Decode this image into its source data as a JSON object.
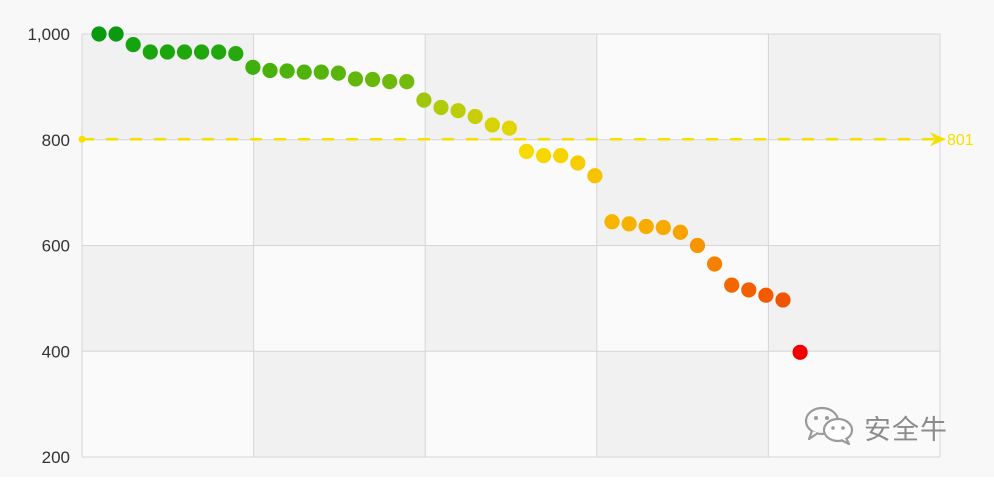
{
  "chart_data": {
    "type": "scatter",
    "title": "",
    "xlabel": "",
    "ylabel": "",
    "ylim": [
      200,
      1000
    ],
    "y_ticks": [
      {
        "value": 1000,
        "label": "1,000"
      },
      {
        "value": 800,
        "label": "800"
      },
      {
        "value": 600,
        "label": "600"
      },
      {
        "value": 400,
        "label": "400"
      },
      {
        "value": 200,
        "label": "200"
      }
    ],
    "x_gridlines": 4,
    "grid": true,
    "legend": "none",
    "reference_line": {
      "value": 801,
      "label": "801",
      "color": "#f5e000",
      "style": "dashed"
    },
    "series": [
      {
        "values": [
          1000,
          1000,
          980,
          966,
          966,
          966,
          966,
          966,
          963,
          937,
          931,
          930,
          928,
          928,
          926,
          915,
          914,
          910,
          910,
          875,
          861,
          855,
          844,
          828,
          822,
          778,
          770,
          770,
          756,
          732,
          645,
          641,
          636,
          634,
          625,
          600,
          565,
          525,
          516,
          506,
          497,
          398
        ],
        "colors": [
          "#0a9a10",
          "#0a9a10",
          "#14a40f",
          "#1ca60e",
          "#1ca60e",
          "#20a70e",
          "#20a70e",
          "#22a80e",
          "#26a90e",
          "#3eaf0c",
          "#48b10c",
          "#4cb20c",
          "#50b30c",
          "#54b40c",
          "#58b50c",
          "#62b70b",
          "#68b80b",
          "#6eb90b",
          "#72ba0b",
          "#9fc60a",
          "#b2cb09",
          "#bccd09",
          "#c8cf08",
          "#d8d306",
          "#e2d505",
          "#f7da00",
          "#f7d700",
          "#f7d400",
          "#f7cc00",
          "#f7c300",
          "#f7b400",
          "#f7b100",
          "#f7ad00",
          "#f7aa00",
          "#f7a300",
          "#f79400",
          "#f68000",
          "#f46700",
          "#f36000",
          "#f25a00",
          "#f15400",
          "#f20000"
        ]
      }
    ]
  },
  "watermark": {
    "icon": "wechat-logo-icon",
    "text": "安全牛"
  }
}
